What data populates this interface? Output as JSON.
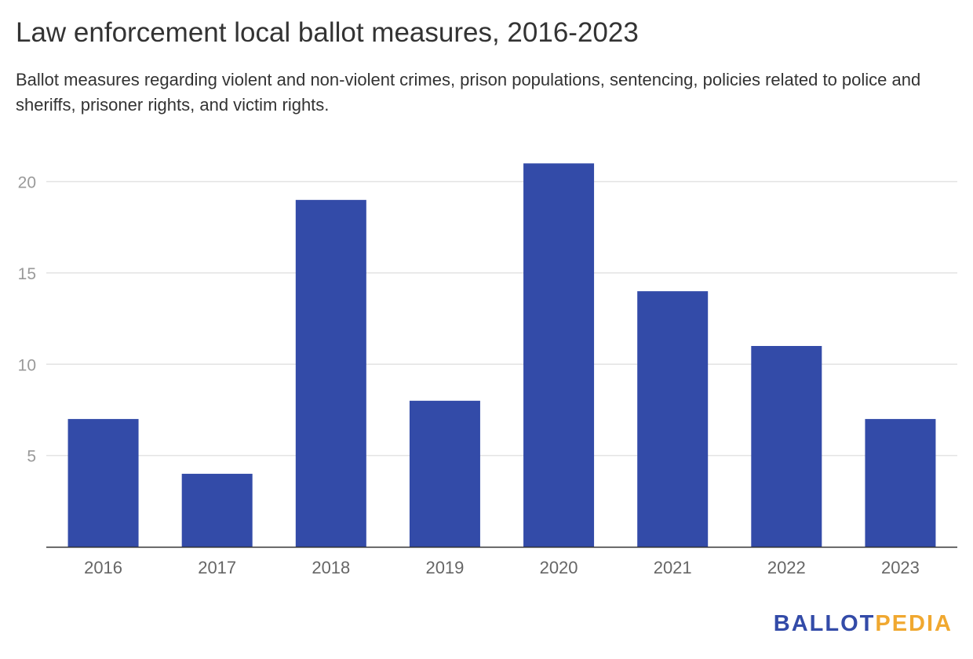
{
  "chart_data": {
    "type": "bar",
    "title": "Law enforcement local ballot measures, 2016-2023",
    "subtitle": "Ballot measures regarding violent and non-violent crimes, prison populations, sentencing, policies related to police and sheriffs, prisoner rights, and victim rights.",
    "categories": [
      "2016",
      "2017",
      "2018",
      "2019",
      "2020",
      "2021",
      "2022",
      "2023"
    ],
    "values": [
      7,
      4,
      19,
      8,
      21,
      14,
      11,
      7
    ],
    "yticks": [
      5,
      10,
      15,
      20
    ],
    "ylim": [
      0,
      22
    ],
    "xlabel": "",
    "ylabel": "",
    "grid": true,
    "bar_color": "#334ba8"
  },
  "branding": {
    "logo_part1": "BALLOT",
    "logo_part2": "PEDIA",
    "color1": "#334ba8",
    "color2": "#f0a830"
  }
}
